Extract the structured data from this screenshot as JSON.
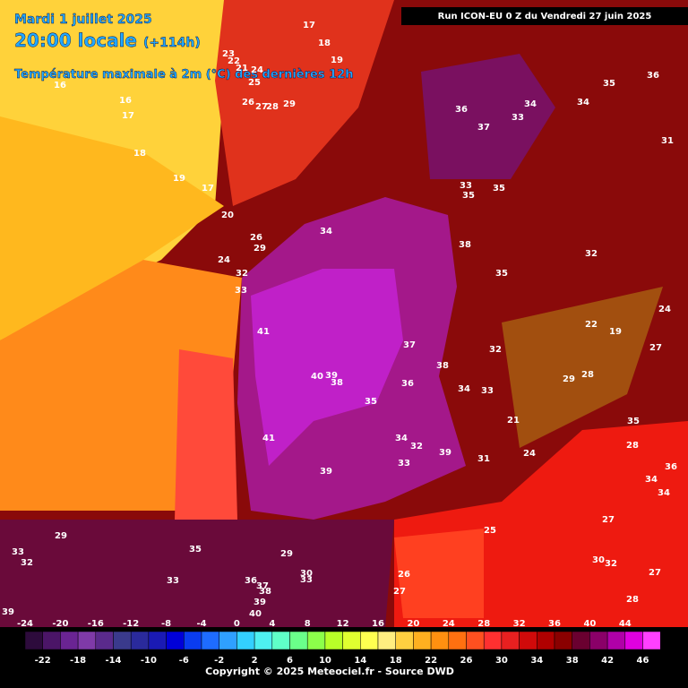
{
  "header": {
    "date": "Mardi 1 juillet 2025",
    "time": "20:00 locale",
    "lead": "(+114h)",
    "title": "Température maximale à 2m (°C) des dernières 12h",
    "run": "Run ICON-EU 0 Z du Vendredi 27 juin 2025"
  },
  "temperatures": [
    17,
    18,
    19,
    23,
    22,
    21,
    24,
    25,
    16,
    16,
    17,
    18,
    19,
    17,
    26,
    27,
    28,
    29,
    20,
    26,
    29,
    24,
    32,
    33,
    34,
    36,
    37,
    33,
    34,
    34,
    35,
    36,
    31,
    33,
    35,
    35,
    38,
    35,
    32,
    41,
    37,
    38,
    40,
    39,
    38,
    36,
    35,
    34,
    33,
    32,
    29,
    28,
    21,
    41,
    34,
    32,
    39,
    33,
    39,
    31,
    24,
    35,
    28,
    36,
    34,
    34,
    25,
    27,
    30,
    32,
    27,
    28,
    29,
    33,
    32,
    35,
    29,
    30,
    33,
    33,
    36,
    37,
    38,
    39,
    40,
    26,
    27,
    39,
    24,
    19,
    27,
    22
  ],
  "scale": {
    "ticks": [
      -24,
      -22,
      -20,
      -18,
      -16,
      -14,
      -12,
      -10,
      -8,
      -6,
      -4,
      -2,
      0,
      2,
      4,
      6,
      8,
      10,
      12,
      14,
      16,
      18,
      20,
      22,
      24,
      26,
      28,
      30,
      32,
      34,
      36,
      38,
      40,
      42,
      44,
      46
    ],
    "colors": [
      "#2d0b3c",
      "#4b1567",
      "#6a2493",
      "#7f3aa8",
      "#5a2a8c",
      "#3a3a8c",
      "#2a2a9c",
      "#1a1ab4",
      "#0000d8",
      "#0a3cf0",
      "#1e6cff",
      "#2fa0ff",
      "#33d0ff",
      "#4ef0f0",
      "#5fffc8",
      "#6aff8a",
      "#8cff4a",
      "#b8ff28",
      "#e0ff30",
      "#ffff50",
      "#ffee80",
      "#ffd040",
      "#ffb020",
      "#ff9010",
      "#ff7010",
      "#ff5020",
      "#ff3030",
      "#e82020",
      "#d00a0a",
      "#b00000",
      "#8a0000",
      "#6a0030",
      "#8a0068",
      "#b000a8",
      "#e000e0",
      "#ff40ff"
    ]
  },
  "footer": "Copyright © 2025 Meteociel.fr - Source DWD"
}
